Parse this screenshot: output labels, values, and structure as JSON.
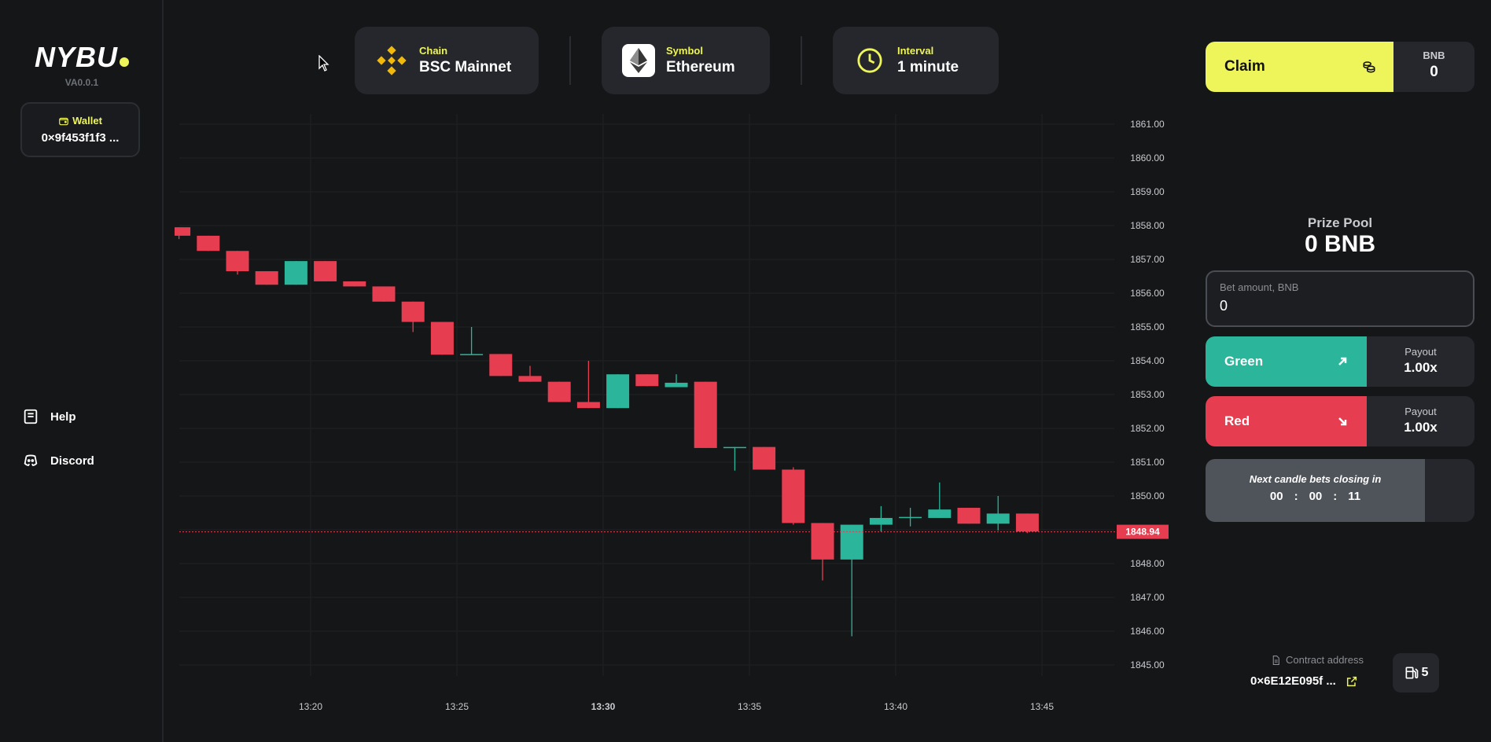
{
  "sidebar": {
    "logo": "NYBU",
    "version": "VA0.0.1",
    "wallet_label": "Wallet",
    "wallet_address": "0×9f453f1f3 ...",
    "nav": [
      {
        "label": "Help",
        "icon": "book-icon"
      },
      {
        "label": "Discord",
        "icon": "discord-icon"
      }
    ]
  },
  "header": {
    "chain": {
      "label": "Chain",
      "value": "BSC Mainnet",
      "icon": "binance-icon"
    },
    "symbol": {
      "label": "Symbol",
      "value": "Ethereum",
      "icon": "ethereum-icon"
    },
    "interval": {
      "label": "Interval",
      "value": "1 minute",
      "icon": "clock-icon"
    }
  },
  "panel": {
    "claim_label": "Claim",
    "bnb_label": "BNB",
    "bnb_value": "0",
    "prize_label": "Prize Pool",
    "prize_value": "0 BNB",
    "bet_label": "Bet amount, BNB",
    "bet_value": "0",
    "green": {
      "label": "Green",
      "payout_label": "Payout",
      "payout_value": "1.00x"
    },
    "red": {
      "label": "Red",
      "payout_label": "Payout",
      "payout_value": "1.00x"
    },
    "timer_label": "Next candle bets closing in",
    "timer": {
      "h": "00",
      "m": "00",
      "s": "11"
    },
    "contract_label": "Contract address",
    "contract_address": "0×6E12E095f ...",
    "gas_value": "5"
  },
  "colors": {
    "accent": "#eef55b",
    "up": "#2bb59a",
    "down": "#e63e50",
    "panel": "#25272c",
    "background": "#151618"
  },
  "chart_data": {
    "type": "candlestick",
    "ylim": [
      1844.5,
      1861.3
    ],
    "yticks": [
      "1861.00",
      "1860.00",
      "1859.00",
      "1858.00",
      "1857.00",
      "1856.00",
      "1855.00",
      "1854.00",
      "1853.00",
      "1852.00",
      "1851.00",
      "1850.00",
      "1849.00",
      "1848.00",
      "1847.00",
      "1846.00",
      "1845.00"
    ],
    "xticks": [
      {
        "label": "13:20",
        "minute": 20
      },
      {
        "label": "13:25",
        "minute": 25
      },
      {
        "label": "13:30",
        "minute": 30,
        "bold": true
      },
      {
        "label": "13:35",
        "minute": 35
      },
      {
        "label": "13:40",
        "minute": 40
      },
      {
        "label": "13:45",
        "minute": 45
      }
    ],
    "last_price": "1848.94",
    "last_price_value": 1848.94,
    "candles": [
      {
        "minute": 15.5,
        "open": 1857.95,
        "close": 1857.7,
        "high": 1857.95,
        "low": 1857.6
      },
      {
        "minute": 16.5,
        "open": 1857.7,
        "close": 1857.25,
        "high": 1857.7,
        "low": 1857.25
      },
      {
        "minute": 17.5,
        "open": 1857.25,
        "close": 1856.65,
        "high": 1857.25,
        "low": 1856.55
      },
      {
        "minute": 18.5,
        "open": 1856.65,
        "close": 1856.25,
        "high": 1856.65,
        "low": 1856.25
      },
      {
        "minute": 19.5,
        "open": 1856.25,
        "close": 1856.95,
        "high": 1856.95,
        "low": 1856.25
      },
      {
        "minute": 20.5,
        "open": 1856.95,
        "close": 1856.35,
        "high": 1856.95,
        "low": 1856.35
      },
      {
        "minute": 21.5,
        "open": 1856.35,
        "close": 1856.2,
        "high": 1856.35,
        "low": 1856.2
      },
      {
        "minute": 22.5,
        "open": 1856.2,
        "close": 1855.75,
        "high": 1856.2,
        "low": 1855.75
      },
      {
        "minute": 23.5,
        "open": 1855.75,
        "close": 1855.15,
        "high": 1855.75,
        "low": 1854.85
      },
      {
        "minute": 24.5,
        "open": 1855.15,
        "close": 1854.18,
        "high": 1855.15,
        "low": 1854.18
      },
      {
        "minute": 25.5,
        "open": 1854.18,
        "close": 1854.2,
        "high": 1855.0,
        "low": 1854.18
      },
      {
        "minute": 26.5,
        "open": 1854.2,
        "close": 1853.55,
        "high": 1854.2,
        "low": 1853.55
      },
      {
        "minute": 27.5,
        "open": 1853.55,
        "close": 1853.38,
        "high": 1853.85,
        "low": 1853.38
      },
      {
        "minute": 28.5,
        "open": 1853.38,
        "close": 1852.78,
        "high": 1853.38,
        "low": 1852.78
      },
      {
        "minute": 29.5,
        "open": 1852.78,
        "close": 1852.6,
        "high": 1854.0,
        "low": 1852.6
      },
      {
        "minute": 30.5,
        "open": 1852.6,
        "close": 1853.6,
        "high": 1853.6,
        "low": 1852.6
      },
      {
        "minute": 31.5,
        "open": 1853.6,
        "close": 1853.25,
        "high": 1853.6,
        "low": 1853.25
      },
      {
        "minute": 32.5,
        "open": 1853.22,
        "close": 1853.35,
        "high": 1853.6,
        "low": 1853.22
      },
      {
        "minute": 33.5,
        "open": 1853.38,
        "close": 1851.42,
        "high": 1853.38,
        "low": 1851.42
      },
      {
        "minute": 34.5,
        "open": 1851.42,
        "close": 1851.45,
        "high": 1851.45,
        "low": 1850.75
      },
      {
        "minute": 35.5,
        "open": 1851.45,
        "close": 1850.78,
        "high": 1851.45,
        "low": 1850.78
      },
      {
        "minute": 36.5,
        "open": 1850.78,
        "close": 1849.2,
        "high": 1850.85,
        "low": 1849.15
      },
      {
        "minute": 37.5,
        "open": 1849.2,
        "close": 1848.12,
        "high": 1849.2,
        "low": 1847.5
      },
      {
        "minute": 38.5,
        "open": 1848.12,
        "close": 1849.15,
        "high": 1849.15,
        "low": 1845.85
      },
      {
        "minute": 39.5,
        "open": 1849.15,
        "close": 1849.35,
        "high": 1849.7,
        "low": 1848.95
      },
      {
        "minute": 40.5,
        "open": 1849.35,
        "close": 1849.38,
        "high": 1849.65,
        "low": 1849.1
      },
      {
        "minute": 41.5,
        "open": 1849.35,
        "close": 1849.6,
        "high": 1850.4,
        "low": 1849.35
      },
      {
        "minute": 42.5,
        "open": 1849.65,
        "close": 1849.18,
        "high": 1849.65,
        "low": 1849.18
      },
      {
        "minute": 43.5,
        "open": 1849.18,
        "close": 1849.48,
        "high": 1850.0,
        "low": 1848.98
      },
      {
        "minute": 44.5,
        "open": 1849.48,
        "close": 1848.95,
        "high": 1849.48,
        "low": 1848.9
      }
    ]
  }
}
